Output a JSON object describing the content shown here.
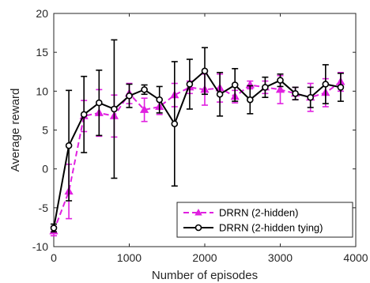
{
  "chart_data": {
    "type": "line",
    "xlabel": "Number of episodes",
    "ylabel": "Average reward",
    "xlim": [
      0,
      4000
    ],
    "ylim": [
      -10,
      20
    ],
    "xticks": [
      0,
      1000,
      2000,
      3000,
      4000
    ],
    "yticks": [
      -10,
      -5,
      0,
      5,
      10,
      15,
      20
    ],
    "grid": false,
    "legend_position": "bottom-right",
    "series": [
      {
        "name": "DRRN (2-hidden)",
        "color": "#e020e0",
        "line_style": "dashed",
        "marker": "triangle",
        "x": [
          0,
          200,
          400,
          600,
          800,
          1000,
          1200,
          1400,
          1600,
          1800,
          2000,
          2200,
          2400,
          2600,
          2800,
          3000,
          3200,
          3400,
          3600,
          3800
        ],
        "y": [
          -8.0,
          -2.9,
          6.8,
          7.2,
          6.8,
          9.7,
          7.6,
          8.0,
          9.5,
          10.5,
          10.2,
          10.4,
          9.3,
          10.8,
          10.5,
          10.2,
          9.7,
          9.2,
          9.8,
          11.2
        ],
        "err": [
          0.6,
          3.5,
          2.0,
          3.0,
          2.7,
          1.3,
          1.5,
          1.0,
          1.5,
          0.8,
          2.0,
          1.8,
          0.8,
          0.5,
          0.8,
          1.8,
          0.8,
          1.8,
          1.8,
          1.2
        ]
      },
      {
        "name": "DRRN (2-hidden tying)",
        "color": "#000000",
        "line_style": "solid",
        "marker": "circle",
        "x": [
          0,
          200,
          400,
          600,
          800,
          1000,
          1200,
          1400,
          1600,
          1800,
          2000,
          2200,
          2400,
          2600,
          2800,
          3000,
          3200,
          3400,
          3600,
          3800
        ],
        "y": [
          -7.6,
          3.0,
          7.0,
          8.5,
          7.7,
          9.4,
          10.2,
          8.9,
          5.8,
          10.9,
          12.6,
          9.6,
          10.8,
          8.9,
          10.5,
          11.4,
          9.7,
          9.2,
          10.9,
          10.5
        ],
        "err": [
          0.5,
          7.1,
          4.9,
          4.2,
          8.9,
          1.5,
          0.6,
          1.7,
          8.0,
          3.2,
          3.0,
          2.8,
          2.1,
          1.8,
          1.3,
          0.8,
          0.8,
          1.3,
          2.5,
          1.8
        ]
      }
    ]
  }
}
